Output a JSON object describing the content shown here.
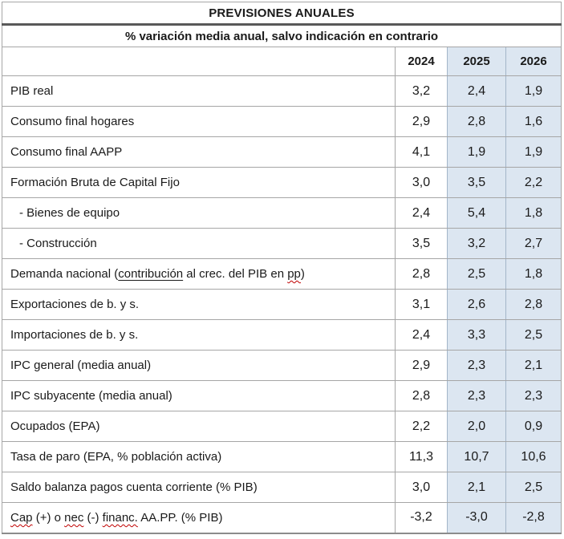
{
  "table": {
    "title": "PREVISIONES ANUALES",
    "subtitle": "% variación media anual, salvo indicación en contrario",
    "columns": [
      "2024",
      "2025",
      "2026"
    ],
    "rows": [
      {
        "label": [
          {
            "text": "PIB real"
          }
        ],
        "values": [
          "3,2",
          "2,4",
          "1,9"
        ]
      },
      {
        "label": [
          {
            "text": "Consumo final hogares"
          }
        ],
        "values": [
          "2,9",
          "2,8",
          "1,6"
        ]
      },
      {
        "label": [
          {
            "text": "Consumo final AAPP"
          }
        ],
        "values": [
          "4,1",
          "1,9",
          "1,9"
        ]
      },
      {
        "label": [
          {
            "text": "Formación Bruta de Capital Fijo"
          }
        ],
        "values": [
          "3,0",
          "3,5",
          "2,2"
        ]
      },
      {
        "label": [
          {
            "text": "- Bienes de equipo"
          }
        ],
        "values": [
          "2,4",
          "5,4",
          "1,8"
        ],
        "indent": true
      },
      {
        "label": [
          {
            "text": "- Construcción"
          }
        ],
        "values": [
          "3,5",
          "3,2",
          "2,7"
        ],
        "indent": true
      },
      {
        "label": [
          {
            "text": "Demanda nacional ("
          },
          {
            "text": "contribución",
            "style": "underline"
          },
          {
            "text": " al crec. del PIB en "
          },
          {
            "text": "pp",
            "style": "spellcheck"
          },
          {
            "text": ")"
          }
        ],
        "values": [
          "2,8",
          "2,5",
          "1,8"
        ]
      },
      {
        "label": [
          {
            "text": "Exportaciones de b. y s."
          }
        ],
        "values": [
          "3,1",
          "2,6",
          "2,8"
        ]
      },
      {
        "label": [
          {
            "text": "Importaciones de b. y s."
          }
        ],
        "values": [
          "2,4",
          "3,3",
          "2,5"
        ]
      },
      {
        "label": [
          {
            "text": "IPC general (media anual)"
          }
        ],
        "values": [
          "2,9",
          "2,3",
          "2,1"
        ]
      },
      {
        "label": [
          {
            "text": "IPC subyacente (media anual)"
          }
        ],
        "values": [
          "2,8",
          "2,3",
          "2,3"
        ]
      },
      {
        "label": [
          {
            "text": "Ocupados (EPA)"
          }
        ],
        "values": [
          "2,2",
          "2,0",
          "0,9"
        ]
      },
      {
        "label": [
          {
            "text": "Tasa de paro (EPA, % población activa)"
          }
        ],
        "values": [
          "11,3",
          "10,7",
          "10,6"
        ]
      },
      {
        "label": [
          {
            "text": "Saldo balanza pagos cuenta corriente (% PIB)"
          }
        ],
        "values": [
          "3,0",
          "2,1",
          "2,5"
        ]
      },
      {
        "label": [
          {
            "text": "Cap",
            "style": "spellcheck"
          },
          {
            "text": " (+) o "
          },
          {
            "text": "nec",
            "style": "spellcheck"
          },
          {
            "text": " (-) "
          },
          {
            "text": "financ.",
            "style": "spellcheck"
          },
          {
            "text": " AA.PP. (% PIB)"
          }
        ],
        "values": [
          "-3,2",
          "-3,0",
          "-2,8"
        ]
      }
    ]
  },
  "colors": {
    "highlight-blue": "#dce6f1",
    "border-gray": "#a6a6a6",
    "border-blue": "#a3b5c9",
    "title-rule": "#595959",
    "text": "#1a1a1a",
    "spell-red": "#c00000"
  }
}
